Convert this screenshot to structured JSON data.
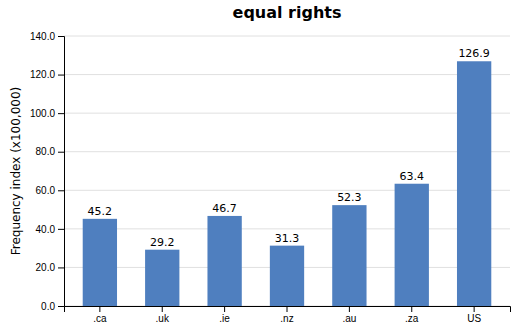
{
  "chart_data": {
    "type": "bar",
    "title": "equal rights",
    "categories": [
      ".ca",
      ".uk",
      ".ie",
      ".nz",
      ".au",
      ".za",
      "US"
    ],
    "values": [
      45.2,
      29.2,
      46.7,
      31.3,
      52.3,
      63.4,
      126.9
    ],
    "color": "#4f7fbf",
    "ylabel": "Frequency index (x100,000)",
    "ylim": [
      0,
      140
    ],
    "yticks": [
      {
        "value": 0,
        "label": "0.0"
      },
      {
        "value": 20,
        "label": "20.0"
      },
      {
        "value": 40,
        "label": "40.0"
      },
      {
        "value": 60,
        "label": "60.0"
      },
      {
        "value": 80,
        "label": "80.0"
      },
      {
        "value": 100,
        "label": "100.0"
      },
      {
        "value": 120,
        "label": "120.0"
      },
      {
        "value": 140,
        "label": "140.0"
      }
    ],
    "grid": true,
    "data_labels": true
  }
}
